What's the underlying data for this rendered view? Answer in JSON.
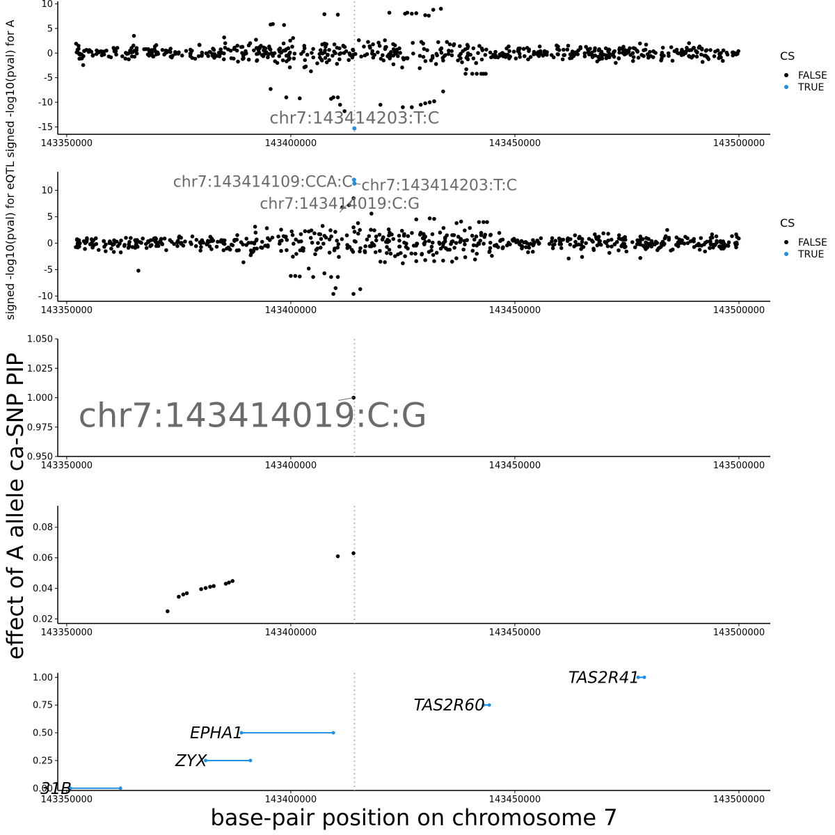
{
  "figure": {
    "xlabel": "base-pair position on chromosome 7",
    "ylabel_big": "effect of A allele  ca-SNP PIP",
    "ylabel_small": "signed -log10(pval) for eQTL  signed -log10(pval) for A",
    "colors": {
      "false": "#000000",
      "true": "#1f8fe8",
      "annotation": "#6b6b6b",
      "gene_line": "#1f8fe8",
      "vline": "#aaaaaa"
    }
  },
  "chart_data": [
    {
      "id": "panel1",
      "type": "scatter",
      "xlim": [
        143348000,
        143507000
      ],
      "ylim": [
        -16.5,
        10.5
      ],
      "yticks": [
        -15,
        -10,
        -5,
        0,
        5,
        10
      ],
      "xticks": [
        143350000,
        143400000,
        143450000,
        143500000
      ],
      "vline": 143414203,
      "legend": {
        "title": "CS",
        "entries": [
          "FALSE",
          "TRUE"
        ],
        "position": "right"
      },
      "annotations": [
        {
          "text": "chr7:143414203:T:C",
          "x": 143414203,
          "y": -15.3
        }
      ],
      "highlight": [
        {
          "x": 143414203,
          "y": -15.3
        }
      ],
      "features": [
        {
          "x": 143439000,
          "y": -4.2,
          "text_free": true
        },
        {
          "x": 143440500,
          "y": -4.2
        },
        {
          "x": 143441500,
          "y": -4.2
        },
        {
          "x": 143442500,
          "y": -4.2
        },
        {
          "x": 143443500,
          "y": -4.2
        },
        {
          "x": 143443000,
          "y": -4.2
        },
        {
          "x": 143412000,
          "y": -11.8
        },
        {
          "x": 143411000,
          "y": -10.5
        },
        {
          "x": 143409500,
          "y": -9.0
        },
        {
          "x": 143410500,
          "y": -9.0
        },
        {
          "x": 143409000,
          "y": -9.3
        },
        {
          "x": 143399000,
          "y": -9.0
        },
        {
          "x": 143402000,
          "y": -9.2
        },
        {
          "x": 143395500,
          "y": -7.3
        },
        {
          "x": 143397000,
          "y": -2.0
        },
        {
          "x": 143404500,
          "y": -3.7
        },
        {
          "x": 143406500,
          "y": -0.9
        },
        {
          "x": 143420000,
          "y": -10.5
        },
        {
          "x": 143425000,
          "y": -11.0
        },
        {
          "x": 143427000,
          "y": -11.0
        },
        {
          "x": 143429000,
          "y": -10.5
        },
        {
          "x": 143430000,
          "y": -10.2
        },
        {
          "x": 143431000,
          "y": -10.0
        },
        {
          "x": 143432000,
          "y": -9.8
        },
        {
          "x": 143434000,
          "y": -7.8
        },
        {
          "x": 143395500,
          "y": 5.8
        },
        {
          "x": 143396000,
          "y": 5.9
        },
        {
          "x": 143398500,
          "y": 5.7
        },
        {
          "x": 143407500,
          "y": 7.9
        },
        {
          "x": 143410500,
          "y": 7.8
        },
        {
          "x": 143422000,
          "y": 8.2
        },
        {
          "x": 143425500,
          "y": 8.0
        },
        {
          "x": 143426000,
          "y": 8.2
        },
        {
          "x": 143427000,
          "y": 8.0
        },
        {
          "x": 143428000,
          "y": 8.1
        },
        {
          "x": 143430000,
          "y": 7.7
        },
        {
          "x": 143430800,
          "y": 7.6
        },
        {
          "x": 143431800,
          "y": 8.8
        },
        {
          "x": 143433500,
          "y": 9.0
        },
        {
          "x": 143421000,
          "y": 2.6
        },
        {
          "x": 143365000,
          "y": 3.5
        }
      ]
    },
    {
      "id": "panel2",
      "type": "scatter",
      "xlim": [
        143348000,
        143507000
      ],
      "ylim": [
        -11,
        13.5
      ],
      "yticks": [
        -10,
        -5,
        0,
        5,
        10
      ],
      "xticks": [
        143350000,
        143400000,
        143450000,
        143500000
      ],
      "legend": {
        "title": "CS",
        "entries": [
          "FALSE",
          "TRUE"
        ],
        "position": "right"
      },
      "annotations": [
        {
          "text": "chr7:143414109:CCA:C",
          "x": 143414109,
          "y": 12.0,
          "side": "left"
        },
        {
          "text": "chr7:143414203:T:C",
          "x": 143414203,
          "y": 11.3,
          "side": "right"
        },
        {
          "text": "chr7:143414019:C:G",
          "x": 143414019,
          "y": 8.5,
          "side": "below"
        }
      ],
      "highlight": [
        {
          "x": 143414109,
          "y": 12.0
        },
        {
          "x": 143414203,
          "y": 11.3
        }
      ],
      "features": [
        {
          "x": 143414019,
          "y": 8.5
        },
        {
          "x": 143411500,
          "y": 6.8
        },
        {
          "x": 143413000,
          "y": 7.2
        },
        {
          "x": 143410000,
          "y": -8.5
        },
        {
          "x": 143409500,
          "y": -9.6
        },
        {
          "x": 143414000,
          "y": -9.6
        },
        {
          "x": 143415500,
          "y": -8.7
        },
        {
          "x": 143409000,
          "y": -6.4
        },
        {
          "x": 143410500,
          "y": -6.4
        },
        {
          "x": 143405000,
          "y": -6.4
        },
        {
          "x": 143402000,
          "y": -6.3
        },
        {
          "x": 143400000,
          "y": -6.2
        },
        {
          "x": 143401000,
          "y": -6.2
        },
        {
          "x": 143407500,
          "y": -5.7
        },
        {
          "x": 143366000,
          "y": -5.2
        },
        {
          "x": 143404000,
          "y": -4.8
        },
        {
          "x": 143414000,
          "y": 3.0
        },
        {
          "x": 143415000,
          "y": 3.8
        },
        {
          "x": 143418000,
          "y": 5.6
        },
        {
          "x": 143428000,
          "y": 4.5
        },
        {
          "x": 143431000,
          "y": 4.7
        },
        {
          "x": 143432000,
          "y": 4.6
        },
        {
          "x": 143442000,
          "y": 4.0
        },
        {
          "x": 143443000,
          "y": 4.0
        },
        {
          "x": 143443800,
          "y": 4.0
        },
        {
          "x": 143438000,
          "y": 4.1
        },
        {
          "x": 143437000,
          "y": 3.8
        },
        {
          "x": 143484000,
          "y": 2.5
        },
        {
          "x": 143420000,
          "y": -3.5
        },
        {
          "x": 143421000,
          "y": -3.6
        },
        {
          "x": 143425000,
          "y": -3.8
        },
        {
          "x": 143428000,
          "y": -3.4
        },
        {
          "x": 143430000,
          "y": -3.2
        },
        {
          "x": 143432000,
          "y": -3.4
        },
        {
          "x": 143434000,
          "y": -3.3
        },
        {
          "x": 143436000,
          "y": -3.5
        },
        {
          "x": 143462000,
          "y": -2.9
        },
        {
          "x": 143465000,
          "y": -2.6
        },
        {
          "x": 143478000,
          "y": -2.8
        }
      ]
    },
    {
      "id": "panel3",
      "type": "scatter",
      "ylabel": "ca-SNP PIP",
      "xlim": [
        143348000,
        143507000
      ],
      "ylim": [
        0.95,
        1.05
      ],
      "yticks": [
        0.95,
        0.975,
        1.0,
        1.025,
        1.05
      ],
      "ytick_labels": [
        "0.950",
        "0.975",
        "1.000",
        "1.025",
        "1.050"
      ],
      "xticks": [
        143350000,
        143400000,
        143450000,
        143500000
      ],
      "vline": 143414203,
      "points": [
        {
          "x": 143414019,
          "y": 1.0
        }
      ],
      "annotations": [
        {
          "text": "chr7:143414019:C:G",
          "x": 143414019,
          "y": 1.0
        }
      ]
    },
    {
      "id": "panel4",
      "type": "scatter",
      "ylabel": "effect of A allele",
      "xlim": [
        143348000,
        143507000
      ],
      "ylim": [
        0.017,
        0.094
      ],
      "yticks": [
        0.02,
        0.04,
        0.06,
        0.08
      ],
      "xticks": [
        143350000,
        143400000,
        143450000,
        143500000
      ],
      "vline": 143414203,
      "points": [
        {
          "x": 143372500,
          "y": 0.025
        },
        {
          "x": 143375000,
          "y": 0.0345
        },
        {
          "x": 143376000,
          "y": 0.036
        },
        {
          "x": 143376800,
          "y": 0.0368
        },
        {
          "x": 143380000,
          "y": 0.0395
        },
        {
          "x": 143381000,
          "y": 0.0402
        },
        {
          "x": 143382000,
          "y": 0.041
        },
        {
          "x": 143382800,
          "y": 0.0415
        },
        {
          "x": 143385500,
          "y": 0.043
        },
        {
          "x": 143386200,
          "y": 0.0438
        },
        {
          "x": 143387000,
          "y": 0.0448
        },
        {
          "x": 143410500,
          "y": 0.061
        },
        {
          "x": 143414000,
          "y": 0.063
        }
      ]
    },
    {
      "id": "panel5",
      "type": "genes",
      "xlim": [
        143348000,
        143507000
      ],
      "ylim": [
        -0.02,
        1.04
      ],
      "yticks": [
        0.0,
        0.25,
        0.5,
        0.75,
        1.0
      ],
      "ytick_labels": [
        "0.00",
        "0.25",
        "0.50",
        "0.75",
        "1.00"
      ],
      "xticks": [
        143350000,
        143400000,
        143450000,
        143500000
      ],
      "vline": 143414203,
      "genes": [
        {
          "name": "31B",
          "start": 143350800,
          "end": 143362000,
          "y": 0.0
        },
        {
          "name": "ZYX",
          "start": 143381000,
          "end": 143391000,
          "y": 0.25
        },
        {
          "name": "EPHA1",
          "start": 143389000,
          "end": 143409500,
          "y": 0.5
        },
        {
          "name": "TAS2R60",
          "start": 143443000,
          "end": 143444300,
          "y": 0.75
        },
        {
          "name": "TAS2R41",
          "start": 143477500,
          "end": 143478900,
          "y": 1.0
        }
      ]
    }
  ]
}
